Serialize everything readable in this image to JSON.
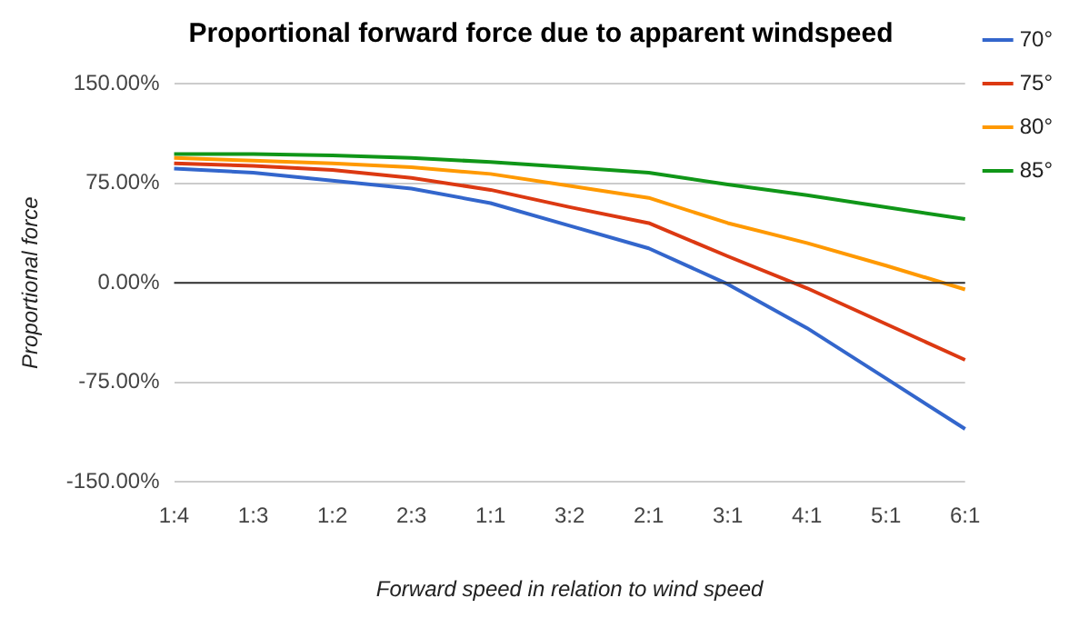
{
  "chart_data": {
    "type": "line",
    "title": "Proportional forward force due to apparent windspeed",
    "xlabel": "Forward speed in relation to wind speed",
    "ylabel": "Proportional force",
    "categories": [
      "1:4",
      "1:3",
      "1:2",
      "2:3",
      "1:1",
      "3:2",
      "2:1",
      "3:1",
      "4:1",
      "5:1",
      "6:1"
    ],
    "series": [
      {
        "name": "70°",
        "color": "#3366cc",
        "values": [
          86,
          83,
          77,
          71,
          60,
          43,
          26,
          -1,
          -34,
          -72,
          -110
        ]
      },
      {
        "name": "75°",
        "color": "#dc3912",
        "values": [
          90,
          88,
          85,
          79,
          70,
          57,
          45,
          20,
          -4,
          -31,
          -58
        ]
      },
      {
        "name": "80°",
        "color": "#ff9900",
        "values": [
          94,
          92,
          90,
          87,
          82,
          73,
          64,
          45,
          30,
          13,
          -5
        ]
      },
      {
        "name": "85°",
        "color": "#109618",
        "values": [
          97,
          97,
          96,
          94,
          91,
          87,
          83,
          74,
          66,
          57,
          48
        ]
      }
    ],
    "ylim": [
      -150,
      150
    ],
    "yticks": [
      {
        "value": -150,
        "label": "-150.00%"
      },
      {
        "value": -75,
        "label": "-75.00%"
      },
      {
        "value": 0,
        "label": "0.00%"
      },
      {
        "value": 75,
        "label": "75.00%"
      },
      {
        "value": 150,
        "label": "150.00%"
      }
    ],
    "ref_lines": [
      {
        "axis": "y",
        "value": 0,
        "color": "#333333"
      }
    ],
    "grid": "y",
    "legend": "top right",
    "marker": "none",
    "line_style": "solid"
  }
}
